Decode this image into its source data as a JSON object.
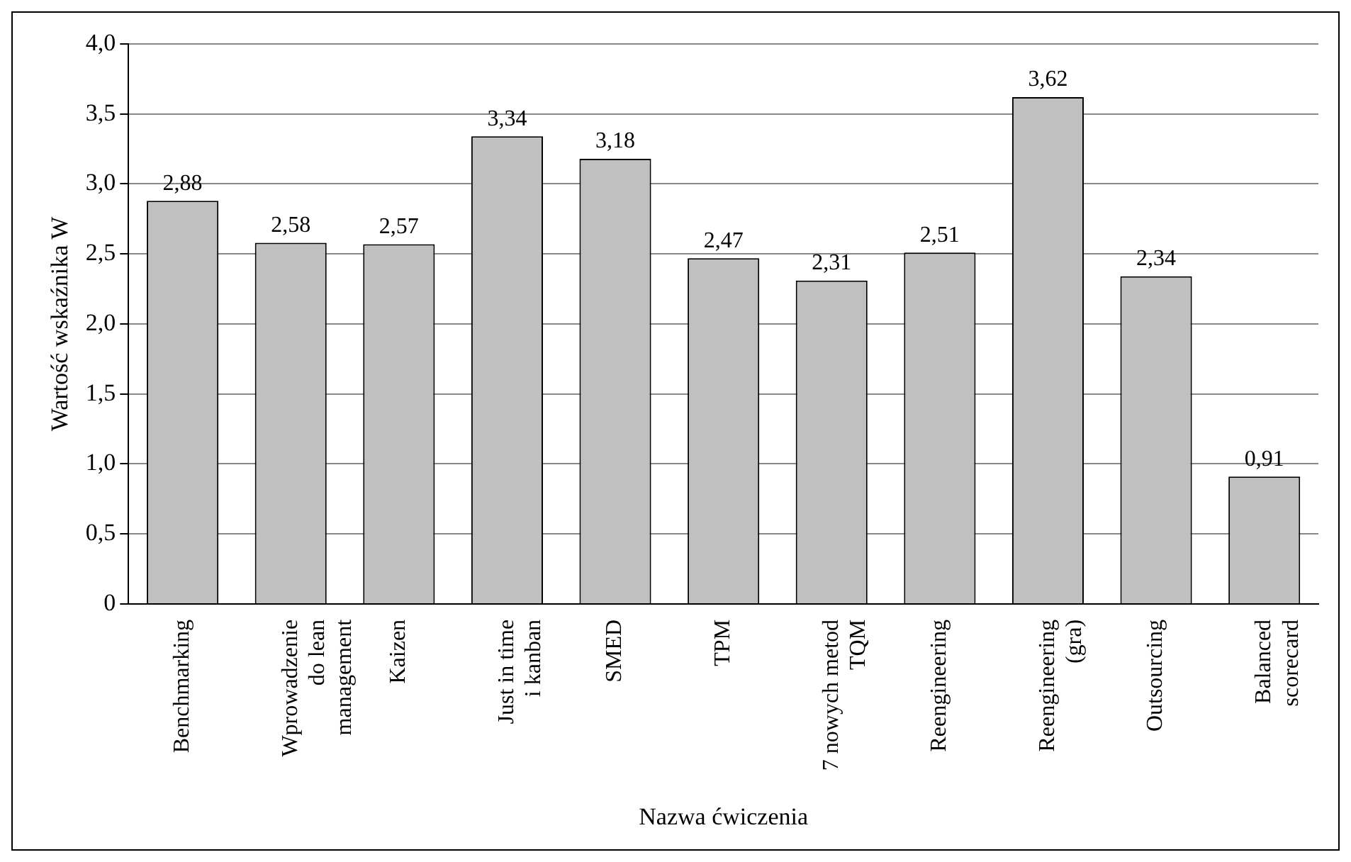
{
  "chart_data": {
    "type": "bar",
    "xlabel": "Nazwa ćwiczenia",
    "ylabel": "Wartość wskaźnika W",
    "categories": [
      "Benchmarking",
      "Wprowadzenie\ndo lean\nmanagement",
      "Kaizen",
      "Just in time\ni kanban",
      "SMED",
      "TPM",
      "7 nowych metod\nTQM",
      "Reengineering",
      "Reengineering\n(gra)",
      "Outsourcing",
      "Balanced\nscorecard"
    ],
    "values": [
      2.88,
      2.58,
      2.57,
      3.34,
      3.18,
      2.47,
      2.31,
      2.51,
      3.62,
      2.34,
      0.91
    ],
    "value_labels": [
      "2,88",
      "2,58",
      "2,57",
      "3,34",
      "3,18",
      "2,47",
      "2,31",
      "2,51",
      "3,62",
      "2,34",
      "0,91"
    ],
    "color": "#c0c0c0",
    "ylim": [
      0,
      4
    ],
    "yticks": [
      {
        "value": 0,
        "label": "0"
      },
      {
        "value": 0.5,
        "label": "0,5"
      },
      {
        "value": 1,
        "label": "1,0"
      },
      {
        "value": 1.5,
        "label": "1,5"
      },
      {
        "value": 2,
        "label": "2,0"
      },
      {
        "value": 2.5,
        "label": "2,5"
      },
      {
        "value": 3,
        "label": "3,0"
      },
      {
        "value": 3.5,
        "label": "3,5"
      },
      {
        "value": 4,
        "label": "4,0"
      }
    ],
    "grid": "y",
    "legend": false
  }
}
